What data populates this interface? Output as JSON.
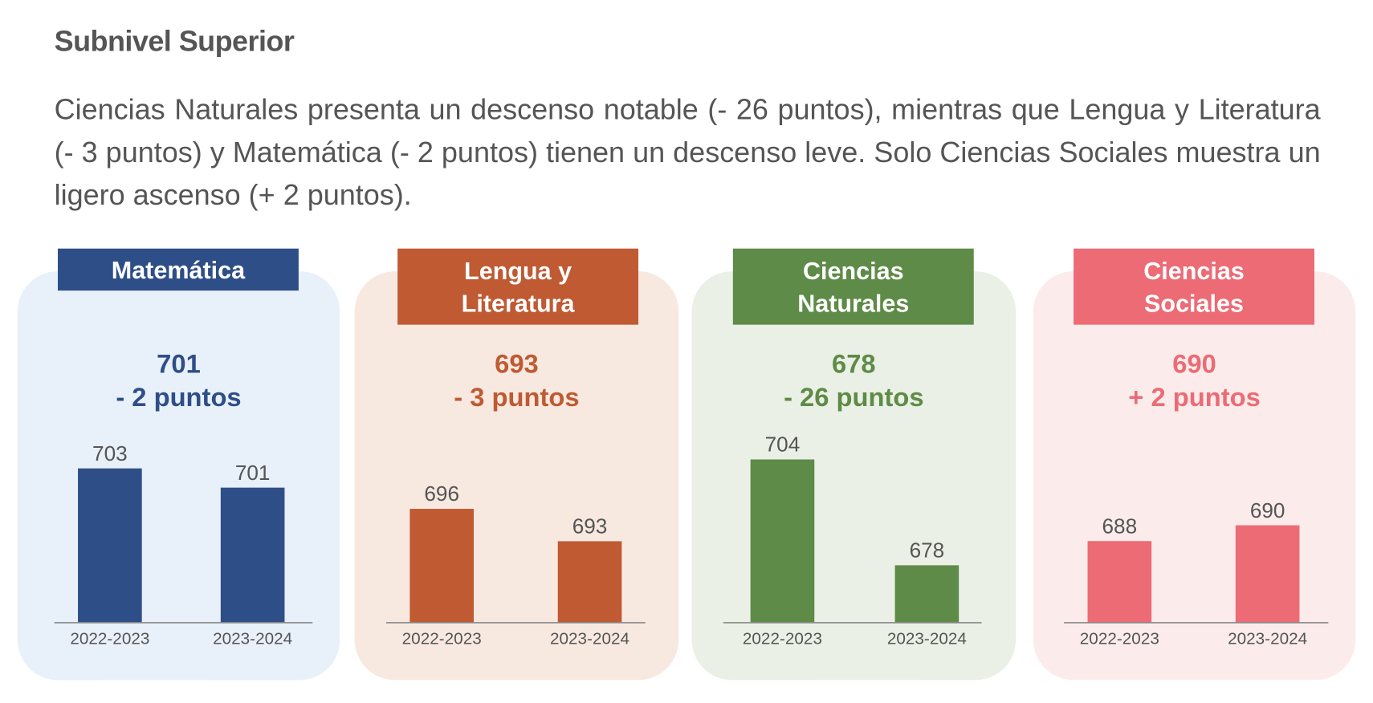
{
  "title": "Subnivel Superior",
  "paragraph": "Ciencias Naturales presenta un descenso notable (- 26 puntos), mientras que Lengua y Literatura (- 3 puntos) y Matemática (- 2 puntos) tienen un descenso leve. Solo Ciencias Sociales muestra un ligero ascenso (+ 2 puntos).",
  "cards": [
    {
      "subject": "Matemática",
      "score": "701",
      "delta": "- 2 puntos",
      "color": "#2e4e87",
      "bg": "#e8f0fa"
    },
    {
      "subject": "Lengua y Literatura",
      "score": "693",
      "delta": "- 3 puntos",
      "color": "#bf5a33",
      "bg": "#f7e9e0"
    },
    {
      "subject": "Ciencias Naturales",
      "score": "678",
      "delta": "- 26 puntos",
      "color": "#5e8b47",
      "bg": "#eaf0e5"
    },
    {
      "subject": "Ciencias Sociales",
      "score": "690",
      "delta": "+ 2 puntos",
      "color": "#ec6b75",
      "bg": "#fbeceb"
    }
  ],
  "chart_data": [
    {
      "type": "bar",
      "title": "Matemática",
      "categories": [
        "2022-2023",
        "2023-2024"
      ],
      "values": [
        703,
        701
      ],
      "ylim": [
        687,
        705.2
      ],
      "grid": false
    },
    {
      "type": "bar",
      "title": "Lengua y Literatura",
      "categories": [
        "2022-2023",
        "2023-2024"
      ],
      "values": [
        696,
        693
      ],
      "ylim": [
        685.5,
        701.7
      ],
      "grid": false
    },
    {
      "type": "bar",
      "title": "Ciencias Naturales",
      "categories": [
        "2022-2023",
        "2023-2024"
      ],
      "values": [
        704,
        678
      ],
      "ylim": [
        664,
        707
      ],
      "grid": false
    },
    {
      "type": "bar",
      "title": "Ciencias Sociales",
      "categories": [
        "2022-2023",
        "2023-2024"
      ],
      "values": [
        688,
        690
      ],
      "ylim": [
        677.7,
        699.9
      ],
      "grid": false
    }
  ]
}
